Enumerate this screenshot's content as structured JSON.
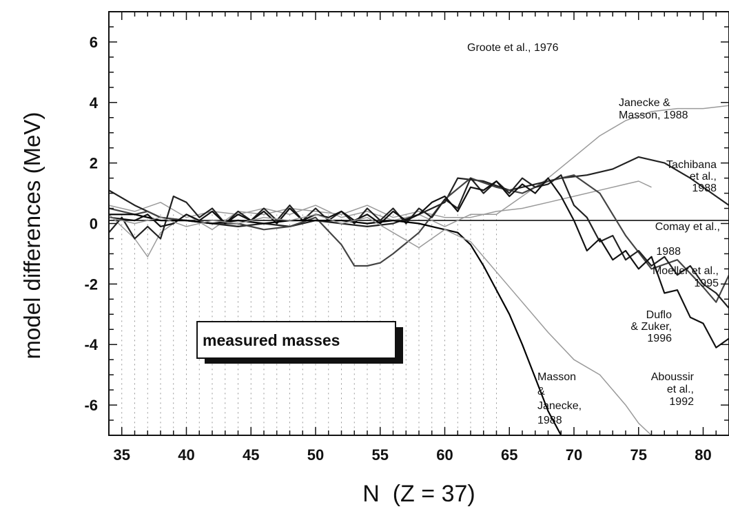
{
  "chart_data": {
    "type": "line",
    "title": "",
    "xlabel": "N  (Z = 37)",
    "ylabel": "model differences (MeV)",
    "xlim": [
      34,
      82
    ],
    "ylim": [
      -7,
      7
    ],
    "xticks": [
      35,
      40,
      45,
      50,
      55,
      60,
      65,
      70,
      75,
      80
    ],
    "yticks": [
      6,
      4,
      2,
      0,
      -2,
      -4,
      -6
    ],
    "grid": false,
    "legend": "none",
    "measured_region": {
      "label": "measured masses",
      "x_range": [
        34,
        64
      ]
    },
    "reference_line": {
      "y": 0.1
    },
    "series": [
      {
        "name": "Groote et al., 1976",
        "color": "#9a9a9a",
        "x": [
          34,
          36,
          37,
          38,
          40,
          42,
          44,
          46,
          48,
          50,
          52,
          54,
          56,
          58,
          60,
          62,
          64,
          66,
          68,
          70,
          72,
          74,
          75,
          76
        ],
        "y": [
          0.3,
          -0.5,
          -1.1,
          -0.3,
          0.3,
          -0.2,
          0.4,
          0.3,
          0.5,
          0.4,
          0.3,
          0.6,
          0.2,
          0.4,
          0.2,
          0.2,
          0.4,
          0.5,
          0.7,
          0.9,
          1.1,
          1.3,
          1.4,
          1.2
        ]
      },
      {
        "name": "Janecke & Masson, 1988",
        "color": "#9a9a9a",
        "x": [
          34,
          36,
          38,
          40,
          42,
          44,
          46,
          48,
          50,
          52,
          54,
          56,
          58,
          60,
          62,
          64,
          66,
          68,
          70,
          72,
          74,
          76,
          78,
          80,
          82
        ],
        "y": [
          0.6,
          0.4,
          0.7,
          0.2,
          0.4,
          0.3,
          0.5,
          0.3,
          0.6,
          0.2,
          0.4,
          0.1,
          0.3,
          -0.1,
          0.3,
          0.3,
          0.9,
          1.5,
          2.2,
          2.9,
          3.4,
          3.7,
          3.8,
          3.8,
          3.9
        ]
      },
      {
        "name": "Tachibana et al., 1988",
        "color": "#222222",
        "x": [
          34,
          36,
          38,
          40,
          42,
          44,
          46,
          48,
          50,
          52,
          54,
          56,
          58,
          60,
          61,
          63,
          65,
          67,
          69,
          71,
          73,
          75,
          77,
          79,
          81,
          82
        ],
        "y": [
          1.1,
          0.6,
          0.2,
          0.1,
          0.0,
          -0.1,
          0.0,
          -0.1,
          0.1,
          0.0,
          -0.1,
          0.0,
          0.3,
          0.7,
          1.5,
          1.4,
          1.1,
          1.3,
          1.5,
          1.6,
          1.8,
          2.2,
          2.0,
          1.5,
          0.9,
          0.6
        ]
      },
      {
        "name": "Comay et al., 1988",
        "color": "#444444",
        "x": [
          34,
          36,
          37,
          38,
          40,
          42,
          44,
          46,
          48,
          50,
          52,
          53,
          54,
          55,
          56,
          58,
          60,
          62,
          64,
          66,
          68,
          70,
          72,
          74,
          76,
          78,
          80,
          81,
          82
        ],
        "y": [
          0.5,
          0.3,
          0.4,
          0.2,
          0.1,
          0.0,
          0.0,
          -0.2,
          -0.1,
          0.2,
          -0.7,
          -1.4,
          -1.4,
          -1.3,
          -1.0,
          -0.3,
          0.8,
          1.5,
          1.2,
          1.0,
          1.4,
          1.6,
          1.0,
          -0.4,
          -1.5,
          -1.2,
          -2.1,
          -2.6,
          -1.7
        ]
      },
      {
        "name": "Moeller et al., 1995",
        "color": "#222222",
        "x": [
          34,
          35,
          36,
          37,
          38,
          39,
          40,
          41,
          42,
          43,
          44,
          45,
          46,
          47,
          48,
          49,
          50,
          51,
          52,
          53,
          54,
          55,
          56,
          57,
          58,
          59,
          60,
          61,
          62,
          63,
          64,
          65,
          66,
          67,
          68,
          69,
          70,
          71,
          72,
          73,
          74,
          75,
          76,
          77,
          78,
          79,
          80,
          81,
          82
        ],
        "y": [
          -0.3,
          0.2,
          -0.5,
          -0.1,
          -0.5,
          0.9,
          0.7,
          0.2,
          0.5,
          0.0,
          0.4,
          0.1,
          0.5,
          0.1,
          0.6,
          0.1,
          0.5,
          0.1,
          0.4,
          0.0,
          0.5,
          0.1,
          0.5,
          0.0,
          0.5,
          0.2,
          0.8,
          0.5,
          1.5,
          1.0,
          1.4,
          1.0,
          1.5,
          1.2,
          1.3,
          1.6,
          0.6,
          0.2,
          -0.6,
          -0.4,
          -1.2,
          -0.9,
          -1.4,
          -1.1,
          -1.7,
          -1.4,
          -2.0,
          -2.3,
          -2.8
        ]
      },
      {
        "name": "Duflo & Zuker, 1996",
        "color": "#111111",
        "x": [
          34,
          36,
          37,
          38,
          39,
          40,
          41,
          42,
          43,
          44,
          45,
          46,
          47,
          48,
          49,
          50,
          51,
          52,
          53,
          54,
          55,
          56,
          57,
          58,
          59,
          60,
          61,
          62,
          63,
          64,
          65,
          66,
          67,
          68,
          69,
          70,
          71,
          72,
          73,
          74,
          75,
          76,
          77,
          78,
          79,
          80,
          81,
          82
        ],
        "y": [
          0.2,
          0.1,
          0.3,
          -0.1,
          0.0,
          0.3,
          0.1,
          0.4,
          0.0,
          0.3,
          0.1,
          0.4,
          0.0,
          0.5,
          0.1,
          0.3,
          0.2,
          0.4,
          0.1,
          0.3,
          0.0,
          0.4,
          0.1,
          0.3,
          0.7,
          0.9,
          0.4,
          1.2,
          1.1,
          1.4,
          0.9,
          1.3,
          1.0,
          1.5,
          0.9,
          0.1,
          -0.9,
          -0.5,
          -1.2,
          -0.9,
          -1.5,
          -1.1,
          -2.3,
          -2.2,
          -3.1,
          -3.3,
          -4.1,
          -3.8
        ]
      },
      {
        "name": "Masson & Janecke, 1988",
        "color": "#000000",
        "x": [
          34,
          36,
          38,
          40,
          42,
          44,
          46,
          48,
          50,
          52,
          54,
          56,
          58,
          60,
          61,
          62,
          63,
          64,
          65,
          66,
          67,
          68,
          69
        ],
        "y": [
          0.3,
          0.3,
          0.1,
          0.1,
          0.0,
          0.1,
          0.0,
          0.1,
          0.1,
          0.1,
          0.0,
          0.1,
          0.0,
          -0.2,
          -0.3,
          -0.7,
          -1.4,
          -2.2,
          -3.0,
          -4.0,
          -5.1,
          -6.2,
          -7.0
        ]
      },
      {
        "name": "Aboussir et al., 1992",
        "color": "#9a9a9a",
        "x": [
          34,
          36,
          38,
          40,
          42,
          44,
          46,
          48,
          50,
          52,
          54,
          56,
          58,
          60,
          62,
          64,
          66,
          68,
          70,
          72,
          74,
          75,
          76
        ],
        "y": [
          0.2,
          0.0,
          0.2,
          -0.1,
          0.1,
          0.0,
          0.2,
          0.1,
          0.3,
          0.0,
          0.2,
          -0.3,
          -0.8,
          -0.2,
          -0.6,
          -1.6,
          -2.6,
          -3.6,
          -4.5,
          -5.0,
          -6.0,
          -6.6,
          -7.0
        ]
      }
    ],
    "annotations": [
      {
        "lines": [
          "Groote et al., 1976"
        ]
      },
      {
        "lines": [
          "Janecke &",
          "Masson, 1988"
        ]
      },
      {
        "lines": [
          "Tachibana",
          "et al.,",
          "1988"
        ]
      },
      {
        "lines": [
          "Comay et al.,"
        ]
      },
      {
        "lines": [
          "1988"
        ]
      },
      {
        "lines": [
          "Moeller et al.,",
          "1995"
        ]
      },
      {
        "lines": [
          "Duflo",
          "& Zuker,",
          "1996"
        ]
      },
      {
        "lines": [
          "Masson",
          "&",
          "Janecke,",
          "1988"
        ]
      },
      {
        "lines": [
          "Aboussir",
          "et al.,",
          "1992"
        ]
      }
    ]
  }
}
